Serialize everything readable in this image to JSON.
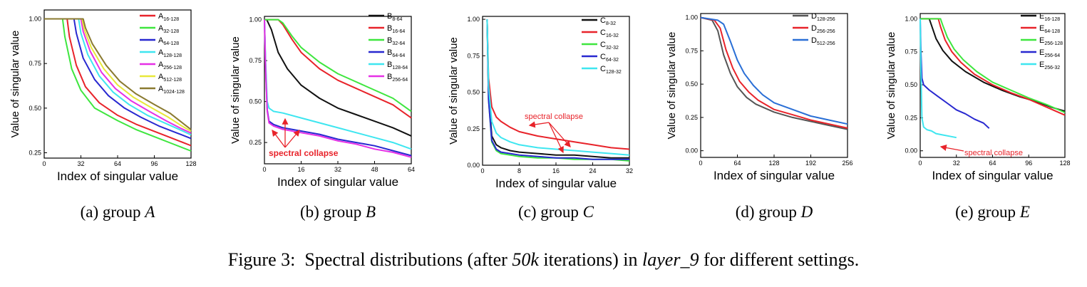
{
  "figure": {
    "caption_label": "Figure 3:",
    "caption_pre": "Spectral distributions (after",
    "caption_iter": "50k",
    "caption_mid": "iterations) in",
    "caption_layer": "layer_9",
    "caption_post": "for different settings."
  },
  "chart_data": [
    {
      "type": "line",
      "subcaption": "(a) group",
      "group": "A",
      "xlabel": "Index of singular value",
      "ylabel": "Value of singular value",
      "xlim": [
        0,
        128
      ],
      "ylim": [
        0.22,
        1.05
      ],
      "xticks": [
        0,
        32,
        64,
        96,
        128
      ],
      "yticks": [
        0.25,
        0.5,
        0.75,
        1.0
      ],
      "ytick_labels": [
        "0.25",
        "0.50",
        "0.75",
        "1.00"
      ],
      "legend": "top-right",
      "series": [
        {
          "name": "A",
          "sub": "16-128",
          "color": "#e8232a",
          "x": [
            0,
            20,
            22,
            28,
            36,
            48,
            64,
            80,
            96,
            112,
            128
          ],
          "y": [
            1.0,
            1.0,
            0.9,
            0.74,
            0.62,
            0.53,
            0.46,
            0.41,
            0.37,
            0.33,
            0.29
          ]
        },
        {
          "name": "A",
          "sub": "32-128",
          "color": "#3ee63e",
          "x": [
            0,
            16,
            18,
            24,
            32,
            44,
            64,
            80,
            96,
            112,
            128
          ],
          "y": [
            1.0,
            1.0,
            0.9,
            0.72,
            0.6,
            0.5,
            0.43,
            0.38,
            0.34,
            0.3,
            0.26
          ]
        },
        {
          "name": "A",
          "sub": "64-128",
          "color": "#2828d0",
          "x": [
            0,
            26,
            28,
            34,
            44,
            56,
            70,
            84,
            100,
            116,
            128
          ],
          "y": [
            1.0,
            1.0,
            0.92,
            0.78,
            0.66,
            0.57,
            0.5,
            0.45,
            0.4,
            0.36,
            0.33
          ]
        },
        {
          "name": "A",
          "sub": "128-128",
          "color": "#3ee6f0",
          "x": [
            0,
            30,
            32,
            38,
            48,
            60,
            74,
            90,
            104,
            118,
            128
          ],
          "y": [
            1.0,
            1.0,
            0.92,
            0.8,
            0.68,
            0.59,
            0.52,
            0.46,
            0.42,
            0.38,
            0.35
          ]
        },
        {
          "name": "A",
          "sub": "256-128",
          "color": "#e630e6",
          "x": [
            0,
            32,
            34,
            40,
            50,
            62,
            76,
            92,
            106,
            118,
            128
          ],
          "y": [
            1.0,
            1.0,
            0.93,
            0.82,
            0.7,
            0.61,
            0.54,
            0.48,
            0.43,
            0.39,
            0.36
          ]
        },
        {
          "name": "A",
          "sub": "512-128",
          "color": "#e8e83a",
          "x": [
            0,
            33,
            35,
            41,
            52,
            64,
            78,
            94,
            108,
            120,
            128
          ],
          "y": [
            1.0,
            1.0,
            0.94,
            0.84,
            0.72,
            0.63,
            0.56,
            0.5,
            0.45,
            0.4,
            0.37
          ]
        },
        {
          "name": "A",
          "sub": "1024-128",
          "color": "#8a7a30",
          "x": [
            0,
            34,
            36,
            42,
            54,
            66,
            80,
            96,
            110,
            122,
            128
          ],
          "y": [
            1.0,
            1.0,
            0.95,
            0.86,
            0.74,
            0.65,
            0.58,
            0.52,
            0.47,
            0.41,
            0.38
          ]
        }
      ]
    },
    {
      "type": "line",
      "subcaption": "(b) group",
      "group": "B",
      "xlabel": "Index of singular value",
      "ylabel": "Value of singular value",
      "xlim": [
        0,
        64
      ],
      "ylim": [
        0.12,
        1.02
      ],
      "xticks": [
        0,
        16,
        32,
        48,
        64
      ],
      "yticks": [
        0.25,
        0.5,
        0.75,
        1.0
      ],
      "ytick_labels": [
        "0.25",
        "0.50",
        "0.75",
        "1.00"
      ],
      "legend": "top-right",
      "annotation": "spectral collapse",
      "series": [
        {
          "name": "B",
          "sub": "8-64",
          "color": "#111111",
          "x": [
            0,
            1,
            3,
            6,
            10,
            16,
            24,
            32,
            40,
            48,
            56,
            64
          ],
          "y": [
            1.0,
            1.0,
            0.94,
            0.8,
            0.7,
            0.6,
            0.52,
            0.46,
            0.42,
            0.38,
            0.34,
            0.29
          ]
        },
        {
          "name": "B",
          "sub": "16-64",
          "color": "#e8232a",
          "x": [
            0,
            6,
            8,
            12,
            16,
            24,
            32,
            40,
            48,
            56,
            60,
            64
          ],
          "y": [
            1.0,
            1.0,
            0.97,
            0.88,
            0.8,
            0.7,
            0.63,
            0.58,
            0.53,
            0.48,
            0.44,
            0.4
          ]
        },
        {
          "name": "B",
          "sub": "32-64",
          "color": "#3ee63e",
          "x": [
            0,
            6,
            8,
            12,
            16,
            24,
            32,
            40,
            48,
            56,
            60,
            64
          ],
          "y": [
            1.0,
            1.0,
            0.98,
            0.9,
            0.83,
            0.74,
            0.67,
            0.62,
            0.57,
            0.52,
            0.48,
            0.44
          ]
        },
        {
          "name": "B",
          "sub": "64-64",
          "color": "#2828d0",
          "x": [
            0,
            0.5,
            1.2,
            2,
            4,
            8,
            16,
            24,
            32,
            40,
            48,
            56,
            64
          ],
          "y": [
            1.0,
            0.72,
            0.45,
            0.38,
            0.36,
            0.34,
            0.32,
            0.3,
            0.27,
            0.25,
            0.23,
            0.2,
            0.17
          ]
        },
        {
          "name": "B",
          "sub": "128-64",
          "color": "#3ee6f0",
          "x": [
            0,
            0.5,
            1.2,
            2,
            4,
            8,
            16,
            24,
            32,
            40,
            48,
            56,
            64
          ],
          "y": [
            1.0,
            0.75,
            0.5,
            0.46,
            0.44,
            0.43,
            0.4,
            0.37,
            0.34,
            0.31,
            0.28,
            0.25,
            0.21
          ]
        },
        {
          "name": "B",
          "sub": "256-64",
          "color": "#e630e6",
          "x": [
            0,
            0.5,
            1.2,
            2,
            4,
            8,
            16,
            24,
            32,
            40,
            48,
            56,
            64
          ],
          "y": [
            1.0,
            0.7,
            0.44,
            0.37,
            0.35,
            0.33,
            0.31,
            0.29,
            0.26,
            0.24,
            0.21,
            0.19,
            0.16
          ]
        }
      ]
    },
    {
      "type": "line",
      "subcaption": "(c) group",
      "group": "C",
      "xlabel": "Index of singular value",
      "ylabel": "Value of singular value",
      "xlim": [
        0,
        32
      ],
      "ylim": [
        0.0,
        1.02
      ],
      "xticks": [
        0,
        8,
        16,
        24,
        32
      ],
      "yticks": [
        0.0,
        0.25,
        0.5,
        0.75,
        1.0
      ],
      "ytick_labels": [
        "0.00",
        "0.25",
        "0.50",
        "0.75",
        "1.00"
      ],
      "legend": "top-right",
      "annotation": "spectral collapse",
      "series": [
        {
          "name": "C",
          "sub": "8-32",
          "color": "#111111",
          "x": [
            1,
            1.3,
            2,
            3,
            4,
            6,
            8,
            12,
            16,
            20,
            24,
            28,
            32
          ],
          "y": [
            1.0,
            0.5,
            0.2,
            0.14,
            0.12,
            0.1,
            0.09,
            0.08,
            0.07,
            0.07,
            0.06,
            0.05,
            0.05
          ]
        },
        {
          "name": "C",
          "sub": "16-32",
          "color": "#e8232a",
          "x": [
            1,
            1.3,
            2,
            3,
            4,
            6,
            8,
            12,
            16,
            20,
            24,
            28,
            32
          ],
          "y": [
            1.0,
            0.6,
            0.4,
            0.33,
            0.3,
            0.26,
            0.23,
            0.2,
            0.18,
            0.16,
            0.14,
            0.12,
            0.11
          ]
        },
        {
          "name": "C",
          "sub": "32-32",
          "color": "#3ee63e",
          "x": [
            1,
            1.3,
            2,
            3,
            4,
            6,
            8,
            12,
            16,
            20,
            24,
            28,
            32
          ],
          "y": [
            1.0,
            0.45,
            0.16,
            0.1,
            0.08,
            0.07,
            0.06,
            0.05,
            0.05,
            0.04,
            0.04,
            0.04,
            0.03
          ]
        },
        {
          "name": "C",
          "sub": "64-32",
          "color": "#2828d0",
          "x": [
            1,
            1.3,
            2,
            3,
            4,
            6,
            8,
            12,
            16,
            20,
            24,
            28,
            32
          ],
          "y": [
            1.0,
            0.45,
            0.17,
            0.11,
            0.09,
            0.08,
            0.07,
            0.06,
            0.05,
            0.05,
            0.04,
            0.04,
            0.04
          ]
        },
        {
          "name": "C",
          "sub": "128-32",
          "color": "#3ee6f0",
          "x": [
            1,
            1.3,
            2,
            3,
            4,
            6,
            8,
            12,
            16,
            20,
            24,
            28,
            32
          ],
          "y": [
            1.0,
            0.55,
            0.3,
            0.22,
            0.19,
            0.16,
            0.14,
            0.12,
            0.11,
            0.1,
            0.09,
            0.08,
            0.07
          ]
        }
      ]
    },
    {
      "type": "line",
      "subcaption": "(d) group",
      "group": "D",
      "xlabel": "Index of singular value",
      "ylabel": "Value of singular value",
      "xlim": [
        0,
        256
      ],
      "ylim": [
        -0.05,
        1.03
      ],
      "xticks": [
        0,
        64,
        128,
        192,
        256
      ],
      "yticks": [
        0.0,
        0.25,
        0.5,
        0.75,
        1.0
      ],
      "ytick_labels": [
        "0.00",
        "0.25",
        "0.50",
        "0.75",
        "1.00"
      ],
      "legend": "top-right",
      "series": [
        {
          "name": "D",
          "sub": "128-256",
          "color": "#555555",
          "x": [
            0,
            20,
            30,
            40,
            52,
            64,
            80,
            96,
            128,
            160,
            192,
            224,
            256
          ],
          "y": [
            1.0,
            0.98,
            0.9,
            0.72,
            0.58,
            0.48,
            0.4,
            0.35,
            0.29,
            0.25,
            0.22,
            0.19,
            0.16
          ]
        },
        {
          "name": "D",
          "sub": "256-256",
          "color": "#e8232a",
          "x": [
            0,
            24,
            34,
            44,
            56,
            68,
            84,
            100,
            128,
            160,
            192,
            224,
            256
          ],
          "y": [
            1.0,
            0.98,
            0.92,
            0.76,
            0.62,
            0.52,
            0.44,
            0.38,
            0.31,
            0.27,
            0.23,
            0.2,
            0.17
          ]
        },
        {
          "name": "D",
          "sub": "512-256",
          "color": "#2a6fd6",
          "x": [
            0,
            30,
            40,
            52,
            64,
            76,
            92,
            108,
            128,
            160,
            192,
            224,
            256
          ],
          "y": [
            1.0,
            0.98,
            0.95,
            0.82,
            0.68,
            0.58,
            0.49,
            0.42,
            0.36,
            0.31,
            0.26,
            0.23,
            0.2
          ]
        }
      ]
    },
    {
      "type": "line",
      "subcaption": "(e) group",
      "group": "E",
      "xlabel": "Index of singular value",
      "ylabel": "Value of singular value",
      "xlim": [
        0,
        128
      ],
      "ylim": [
        -0.05,
        1.04
      ],
      "xticks": [
        0,
        32,
        64,
        96,
        128
      ],
      "yticks": [
        0.0,
        0.25,
        0.5,
        0.75,
        1.0
      ],
      "ytick_labels": [
        "0.00",
        "0.25",
        "0.50",
        "0.75",
        "1.00"
      ],
      "legend": "top-right",
      "annotation": "spectral collapse",
      "series": [
        {
          "name": "E",
          "sub": "16-128",
          "color": "#111111",
          "x": [
            0,
            8,
            10,
            14,
            20,
            28,
            40,
            56,
            72,
            88,
            104,
            116,
            128
          ],
          "y": [
            1.0,
            1.0,
            0.95,
            0.85,
            0.76,
            0.68,
            0.6,
            0.52,
            0.46,
            0.41,
            0.37,
            0.33,
            0.3
          ]
        },
        {
          "name": "E",
          "sub": "64-128",
          "color": "#e8232a",
          "x": [
            0,
            16,
            18,
            22,
            28,
            36,
            48,
            64,
            80,
            96,
            112,
            128
          ],
          "y": [
            1.0,
            1.0,
            0.94,
            0.84,
            0.75,
            0.67,
            0.58,
            0.5,
            0.44,
            0.39,
            0.33,
            0.27
          ]
        },
        {
          "name": "E",
          "sub": "256-128",
          "color": "#3ee63e",
          "x": [
            0,
            18,
            20,
            24,
            30,
            38,
            50,
            64,
            80,
            96,
            112,
            128
          ],
          "y": [
            1.0,
            1.0,
            0.95,
            0.86,
            0.77,
            0.69,
            0.6,
            0.52,
            0.46,
            0.4,
            0.35,
            0.29
          ]
        },
        {
          "name": "E",
          "sub": "256-64",
          "color": "#2828d0",
          "x": [
            0,
            0.6,
            1.5,
            3,
            8,
            16,
            24,
            32,
            40,
            48,
            56,
            61
          ],
          "y": [
            1.0,
            0.75,
            0.55,
            0.5,
            0.46,
            0.41,
            0.36,
            0.31,
            0.28,
            0.24,
            0.21,
            0.17
          ]
        },
        {
          "name": "E",
          "sub": "256-32",
          "color": "#3ee6f0",
          "x": [
            0,
            0.6,
            1.5,
            3,
            6,
            10,
            14,
            20,
            26,
            32
          ],
          "y": [
            1.0,
            0.6,
            0.25,
            0.18,
            0.16,
            0.15,
            0.13,
            0.12,
            0.11,
            0.1
          ]
        }
      ]
    }
  ]
}
